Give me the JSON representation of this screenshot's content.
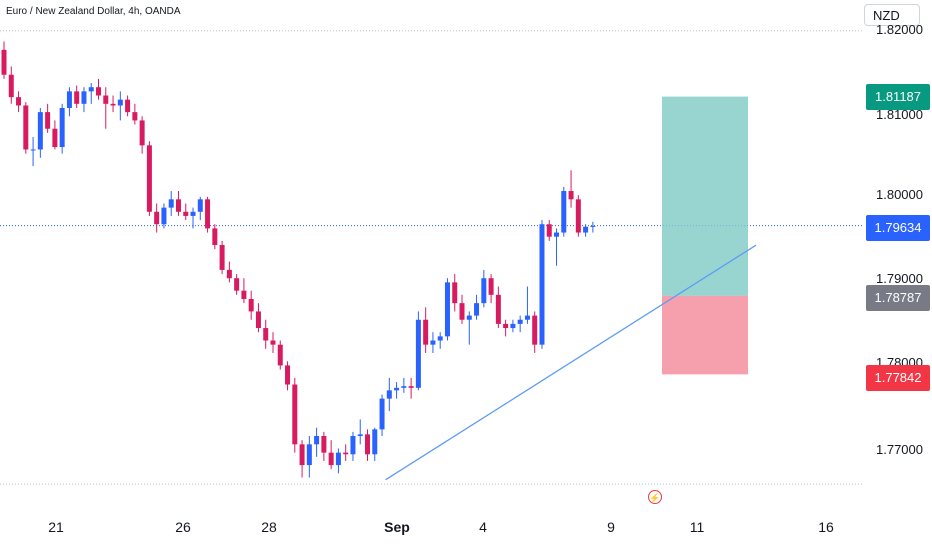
{
  "header": {
    "title": "Euro / New Zealand Dollar, 4h, OANDA",
    "currency": "NZD"
  },
  "colors": {
    "up": "#2962ff",
    "down": "#d81b60",
    "grid": "#b0bec5",
    "target_zone": "#80cbc4",
    "stop_zone": "#f48fa0",
    "trendline": "#5b9cf6",
    "tag_target": "#089981",
    "tag_current": "#2962ff",
    "tag_entry": "#787b86",
    "tag_stop": "#f23645",
    "event": "#f23645"
  },
  "icons": {
    "event": "lightning-icon"
  },
  "price_axis": {
    "ticks": [
      "1.82000",
      "1.81000",
      "1.80000",
      "1.79000",
      "1.78000",
      "1.77000"
    ]
  },
  "tags": {
    "target": "1.81187",
    "current": "1.79634",
    "entry": "1.78787",
    "stop": "1.77842"
  },
  "time_axis": {
    "ticks": [
      "21",
      "26",
      "28",
      "Sep",
      "4",
      "9",
      "11",
      "16"
    ]
  },
  "chart_data": {
    "type": "candlestick",
    "title": "Euro / New Zealand Dollar, 4h, OANDA",
    "currency": "NZD",
    "ylim": [
      1.7645,
      1.8235
    ],
    "x_ticks": [
      "21",
      "26",
      "28",
      "Sep",
      "4",
      "9",
      "11",
      "16"
    ],
    "candles": [
      [
        1.8175,
        1.8185,
        1.814,
        1.8145
      ],
      [
        1.8145,
        1.8155,
        1.811,
        1.8118
      ],
      [
        1.8118,
        1.8125,
        1.81,
        1.8108
      ],
      [
        1.8108,
        1.8112,
        1.805,
        1.8055
      ],
      [
        1.8055,
        1.807,
        1.8035,
        1.8055
      ],
      [
        1.8055,
        1.8105,
        1.8045,
        1.81
      ],
      [
        1.81,
        1.811,
        1.8075,
        1.808
      ],
      [
        1.808,
        1.809,
        1.8055,
        1.8058
      ],
      [
        1.8058,
        1.811,
        1.805,
        1.8105
      ],
      [
        1.8105,
        1.813,
        1.8095,
        1.8125
      ],
      [
        1.8125,
        1.8132,
        1.8105,
        1.811
      ],
      [
        1.811,
        1.813,
        1.81,
        1.8125
      ],
      [
        1.8125,
        1.8135,
        1.811,
        1.813
      ],
      [
        1.813,
        1.814,
        1.8115,
        1.812
      ],
      [
        1.812,
        1.813,
        1.808,
        1.811
      ],
      [
        1.811,
        1.812,
        1.81,
        1.8108
      ],
      [
        1.8108,
        1.8125,
        1.809,
        1.8115
      ],
      [
        1.8115,
        1.812,
        1.8095,
        1.81
      ],
      [
        1.81,
        1.811,
        1.8085,
        1.809
      ],
      [
        1.809,
        1.8095,
        1.805,
        1.806
      ],
      [
        1.806,
        1.8065,
        1.7975,
        1.798
      ],
      [
        1.798,
        1.799,
        1.7955,
        1.7965
      ],
      [
        1.7965,
        1.799,
        1.796,
        1.7985
      ],
      [
        1.7985,
        1.8005,
        1.7975,
        1.7995
      ],
      [
        1.7995,
        1.8005,
        1.7975,
        1.798
      ],
      [
        1.798,
        1.799,
        1.797,
        1.7975
      ],
      [
        1.7975,
        1.7985,
        1.796,
        1.798
      ],
      [
        1.798,
        1.7998,
        1.797,
        1.7995
      ],
      [
        1.7995,
        1.7998,
        1.7955,
        1.796
      ],
      [
        1.796,
        1.7965,
        1.7935,
        1.794
      ],
      [
        1.794,
        1.7945,
        1.7905,
        1.791
      ],
      [
        1.791,
        1.792,
        1.7895,
        1.79
      ],
      [
        1.79,
        1.7905,
        1.788,
        1.7885
      ],
      [
        1.7885,
        1.79,
        1.787,
        1.7875
      ],
      [
        1.7875,
        1.7885,
        1.785,
        1.786
      ],
      [
        1.786,
        1.787,
        1.7835,
        1.784
      ],
      [
        1.784,
        1.785,
        1.7815,
        1.7825
      ],
      [
        1.7825,
        1.7835,
        1.781,
        1.782
      ],
      [
        1.782,
        1.7825,
        1.779,
        1.7795
      ],
      [
        1.7795,
        1.78,
        1.7765,
        1.7772
      ],
      [
        1.7772,
        1.778,
        1.769,
        1.77
      ],
      [
        1.77,
        1.7705,
        1.766,
        1.7675
      ],
      [
        1.7675,
        1.771,
        1.766,
        1.77
      ],
      [
        1.77,
        1.772,
        1.7685,
        1.771
      ],
      [
        1.771,
        1.7715,
        1.768,
        1.769
      ],
      [
        1.769,
        1.7705,
        1.767,
        1.7675
      ],
      [
        1.7675,
        1.7695,
        1.7665,
        1.769
      ],
      [
        1.769,
        1.77,
        1.768,
        1.7688
      ],
      [
        1.7688,
        1.7715,
        1.768,
        1.771
      ],
      [
        1.771,
        1.773,
        1.77,
        1.7712
      ],
      [
        1.7712,
        1.7718,
        1.768,
        1.7688
      ],
      [
        1.7688,
        1.772,
        1.768,
        1.7718
      ],
      [
        1.7718,
        1.776,
        1.771,
        1.7755
      ],
      [
        1.7755,
        1.778,
        1.774,
        1.7765
      ],
      [
        1.7765,
        1.7775,
        1.7755,
        1.7768
      ],
      [
        1.7768,
        1.778,
        1.7762,
        1.777
      ],
      [
        1.777,
        1.778,
        1.7755,
        1.7768
      ],
      [
        1.7768,
        1.786,
        1.7765,
        1.785
      ],
      [
        1.785,
        1.7865,
        1.781,
        1.782
      ],
      [
        1.782,
        1.7835,
        1.781,
        1.7825
      ],
      [
        1.7825,
        1.7835,
        1.7815,
        1.783
      ],
      [
        1.783,
        1.79,
        1.7825,
        1.7895
      ],
      [
        1.7895,
        1.7905,
        1.786,
        1.787
      ],
      [
        1.787,
        1.788,
        1.7845,
        1.785
      ],
      [
        1.785,
        1.786,
        1.782,
        1.7855
      ],
      [
        1.7855,
        1.788,
        1.785,
        1.787
      ],
      [
        1.787,
        1.791,
        1.7865,
        1.79
      ],
      [
        1.79,
        1.7905,
        1.787,
        1.788
      ],
      [
        1.788,
        1.789,
        1.784,
        1.7845
      ],
      [
        1.7845,
        1.785,
        1.783,
        1.784
      ],
      [
        1.784,
        1.785,
        1.7835,
        1.7845
      ],
      [
        1.7845,
        1.7855,
        1.7835,
        1.785
      ],
      [
        1.785,
        1.789,
        1.7845,
        1.7855
      ],
      [
        1.7855,
        1.786,
        1.781,
        1.782
      ],
      [
        1.782,
        1.797,
        1.7815,
        1.7965
      ],
      [
        1.7965,
        1.797,
        1.7945,
        1.795
      ],
      [
        1.795,
        1.796,
        1.7915,
        1.7955
      ],
      [
        1.7955,
        1.801,
        1.795,
        1.8005
      ],
      [
        1.8005,
        1.803,
        1.7985,
        1.7995
      ],
      [
        1.7995,
        1.8,
        1.795,
        1.7955
      ],
      [
        1.7955,
        1.7965,
        1.795,
        1.7962
      ],
      [
        1.7962,
        1.7968,
        1.7955,
        1.7963
      ]
    ],
    "levels": {
      "target": 1.81187,
      "current": 1.79634,
      "entry": 1.78787,
      "stop": 1.77842,
      "upper_dotted": 1.8198,
      "lower_dotted": 1.7652
    },
    "position": {
      "type": "long",
      "entry": 1.78787,
      "take_profit": 1.81187,
      "stop_loss": 1.77842
    },
    "trendline": {
      "from_price": 1.7655,
      "to_price": 1.7935,
      "from_candle": 47,
      "to_candle": 92
    }
  }
}
